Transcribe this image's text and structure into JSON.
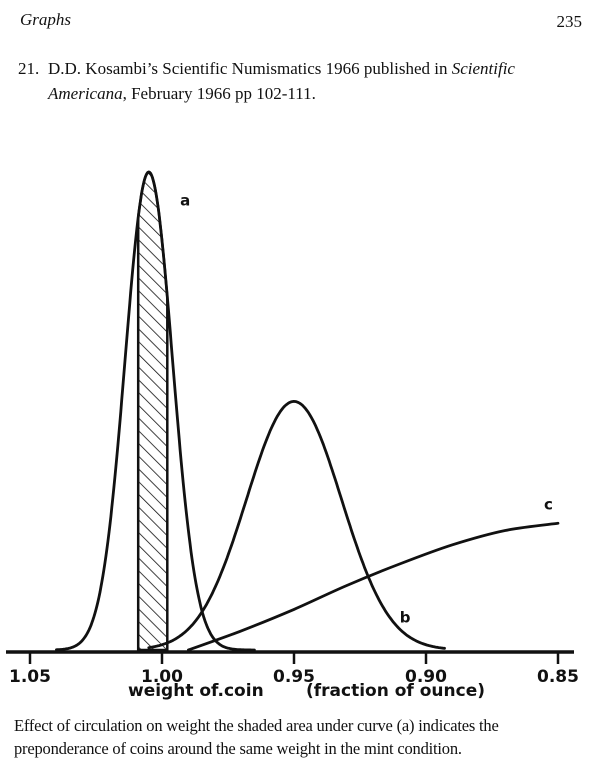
{
  "header": {
    "section": "Graphs",
    "page_number": "235"
  },
  "reference": {
    "number": "21.",
    "text_before": "D.D. Kosambi’s  Scientific Numismatics 1966 published in ",
    "journal": "Scientific Americana",
    "text_after": ", February 1966 pp 102-111."
  },
  "chart_data": {
    "type": "line",
    "xlabel": "weight of.coin",
    "xunit": "(fraction of ounce)",
    "x_direction": "descending",
    "xlim": [
      1.05,
      0.85
    ],
    "x_ticks": [
      1.05,
      1.0,
      0.95,
      0.9,
      0.85
    ],
    "x_tick_labels": [
      "1.05",
      "1.00",
      "0.95",
      "0.90",
      "0.85"
    ],
    "grid": false,
    "series": [
      {
        "name": "a",
        "shape": "gaussian",
        "mean": 1.005,
        "sd": 0.009,
        "peak": 1.0,
        "x_start": 1.04,
        "x_end": 0.965
      },
      {
        "name": "b",
        "shape": "gaussian",
        "mean": 0.95,
        "sd": 0.018,
        "peak": 0.52,
        "x_start": 1.005,
        "x_end": 0.893
      },
      {
        "name": "c",
        "shape": "rising",
        "x": [
          0.99,
          0.97,
          0.95,
          0.93,
          0.91,
          0.89,
          0.87,
          0.85
        ],
        "y": [
          0.0,
          0.04,
          0.085,
          0.135,
          0.18,
          0.22,
          0.25,
          0.265
        ]
      }
    ],
    "shaded_region": {
      "series": "a",
      "x_from": 1.009,
      "x_to": 0.998
    }
  },
  "caption": "Effect of circulation on weight the shaded area under curve (a) indicates the preponderance of coins around the same weight in the mint condition."
}
